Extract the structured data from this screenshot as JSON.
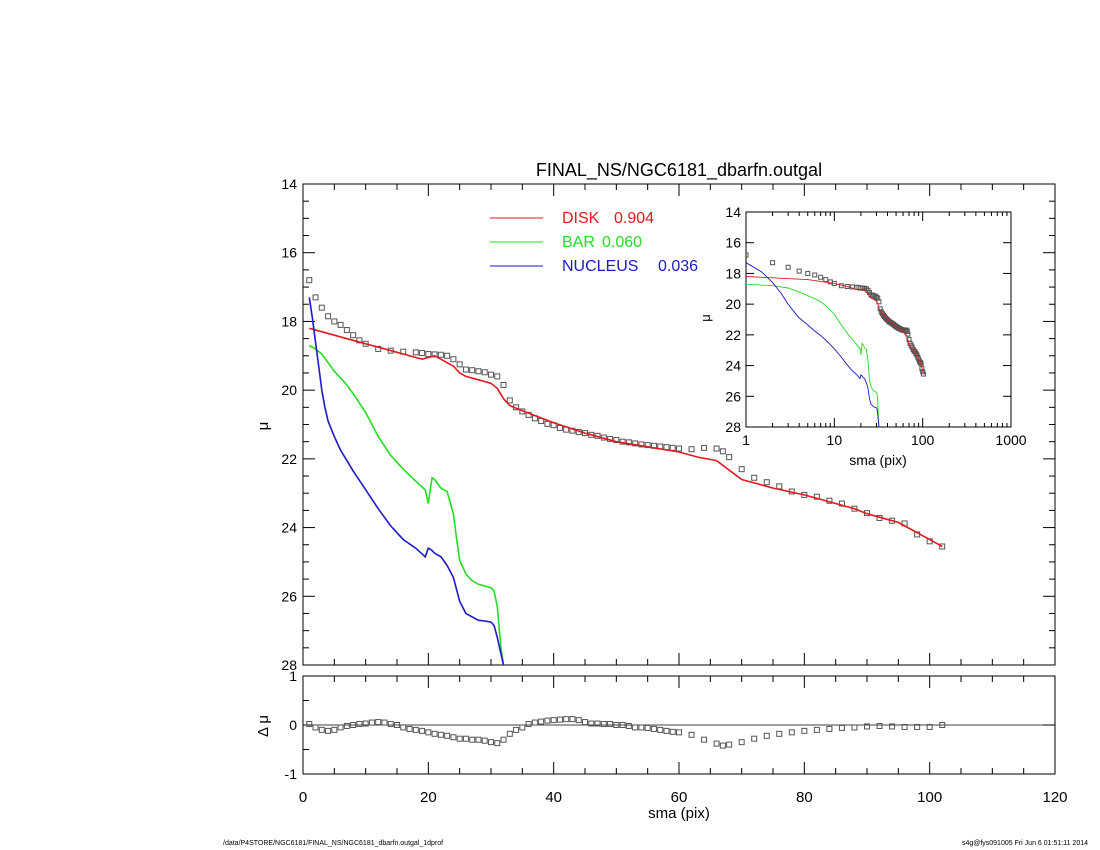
{
  "chart_data": [
    {
      "panel": "main profile",
      "type": "line",
      "title": "FINAL_NS/NGC6181_dbarfn.outgal",
      "xlabel": "",
      "ylabel": "μ",
      "xlim": [
        0,
        120
      ],
      "ylim": [
        28,
        14
      ],
      "y_inverted": true,
      "x_ticks": [
        "0",
        "20",
        "40",
        "60",
        "80",
        "100",
        "120"
      ],
      "y_ticks": [
        "14",
        "16",
        "18",
        "20",
        "22",
        "24",
        "26",
        "28"
      ],
      "legend_position": "top-center",
      "legend": [
        {
          "name": "DISK",
          "value": "0.904",
          "color": "#e31a1c"
        },
        {
          "name": "BAR",
          "value": "0.060",
          "color": "#22dd22"
        },
        {
          "name": "NUCLEUS",
          "value": "0.036",
          "color": "#1a1acc"
        }
      ],
      "observed": {
        "marker": "open-square",
        "color": "#555555",
        "x": [
          1,
          2,
          3,
          4,
          5,
          6,
          7,
          8,
          9,
          10,
          12,
          14,
          16,
          18,
          19,
          20,
          21,
          22,
          23,
          24,
          25,
          26,
          27,
          28,
          29,
          30,
          31,
          32,
          33,
          34,
          35,
          36,
          37,
          38,
          39,
          40,
          41,
          42,
          43,
          44,
          45,
          46,
          47,
          48,
          49,
          50,
          51,
          52,
          53,
          54,
          55,
          56,
          57,
          58,
          59,
          60,
          62,
          64,
          66,
          67,
          68,
          70,
          72,
          74,
          76,
          78,
          80,
          82,
          84,
          86,
          88,
          90,
          92,
          94,
          96,
          98,
          100,
          102
        ],
        "y": [
          16.8,
          17.3,
          17.6,
          17.85,
          18.0,
          18.1,
          18.25,
          18.4,
          18.55,
          18.65,
          18.8,
          18.85,
          18.88,
          18.9,
          18.92,
          18.95,
          18.96,
          18.97,
          19.0,
          19.1,
          19.25,
          19.4,
          19.42,
          19.45,
          19.48,
          19.55,
          19.6,
          19.85,
          20.3,
          20.5,
          20.62,
          20.72,
          20.82,
          20.9,
          20.98,
          21.02,
          21.1,
          21.15,
          21.18,
          21.22,
          21.25,
          21.3,
          21.33,
          21.38,
          21.42,
          21.45,
          21.5,
          21.52,
          21.55,
          21.58,
          21.6,
          21.62,
          21.64,
          21.66,
          21.68,
          21.7,
          21.72,
          21.68,
          21.7,
          21.78,
          21.95,
          22.3,
          22.55,
          22.68,
          22.8,
          22.95,
          23.05,
          23.1,
          23.22,
          23.3,
          23.45,
          23.58,
          23.72,
          23.8,
          23.88,
          24.2,
          24.4,
          24.55
        ]
      },
      "series": [
        {
          "name": "DISK",
          "color": "#e31a1c",
          "x": [
            1,
            5,
            10,
            15,
            18,
            19,
            20,
            21,
            22,
            23,
            24,
            25,
            26,
            28,
            30,
            31,
            32,
            33,
            35,
            40,
            45,
            50,
            55,
            60,
            63,
            66,
            70,
            75,
            80,
            85,
            88,
            90,
            95,
            100,
            102
          ],
          "y": [
            18.2,
            18.4,
            18.65,
            18.9,
            19.05,
            19.1,
            19.05,
            19.0,
            19.1,
            19.2,
            19.3,
            19.5,
            19.6,
            19.7,
            19.8,
            19.95,
            20.25,
            20.45,
            20.6,
            20.95,
            21.25,
            21.5,
            21.65,
            21.8,
            21.95,
            22.05,
            22.6,
            22.85,
            23.05,
            23.3,
            23.45,
            23.6,
            23.85,
            24.35,
            24.55
          ]
        },
        {
          "name": "BAR",
          "color": "#22dd22",
          "x": [
            1,
            2,
            3,
            4,
            5,
            6,
            7,
            8,
            10,
            12,
            14,
            16,
            18,
            19.5,
            20,
            20.3,
            20.6,
            21,
            22,
            23,
            24,
            24.5,
            25,
            26,
            27,
            28,
            29,
            30,
            30.5,
            31,
            31.3,
            31.6,
            32
          ],
          "y": [
            18.7,
            18.8,
            18.95,
            19.2,
            19.45,
            19.65,
            19.85,
            20.1,
            20.65,
            21.35,
            21.9,
            22.3,
            22.65,
            22.9,
            23.3,
            22.9,
            22.55,
            22.6,
            22.85,
            22.95,
            23.6,
            24.3,
            24.95,
            25.35,
            25.55,
            25.65,
            25.7,
            25.75,
            25.85,
            26.3,
            26.9,
            27.5,
            28
          ]
        },
        {
          "name": "NUCLEUS",
          "color": "#1a1acc",
          "x": [
            1,
            1.5,
            2,
            2.5,
            3,
            3.5,
            4,
            5,
            6,
            7,
            8,
            10,
            12,
            14,
            16,
            18,
            19.5,
            20,
            20.5,
            21,
            22,
            23,
            24,
            25,
            26,
            27,
            28,
            29,
            30,
            30.5,
            31,
            31.5,
            32
          ],
          "y": [
            17.3,
            17.9,
            18.6,
            19.3,
            20.0,
            20.5,
            20.9,
            21.35,
            21.75,
            22.05,
            22.35,
            22.9,
            23.45,
            23.95,
            24.35,
            24.6,
            24.85,
            24.6,
            24.65,
            24.75,
            24.85,
            25.1,
            25.45,
            26.15,
            26.5,
            26.6,
            26.7,
            26.72,
            26.75,
            26.85,
            27.2,
            27.6,
            28
          ]
        }
      ]
    },
    {
      "panel": "residuals",
      "type": "scatter",
      "xlabel": "sma (pix)",
      "ylabel": "Δ μ",
      "xlim": [
        0,
        120
      ],
      "ylim": [
        -1,
        1
      ],
      "x_ticks": [
        "0",
        "20",
        "40",
        "60",
        "80",
        "100",
        "120"
      ],
      "y_ticks": [
        "1",
        "0",
        "-1"
      ],
      "zero_line": true,
      "marker": "open-square",
      "x": [
        1,
        2,
        3,
        4,
        5,
        6,
        7,
        8,
        9,
        10,
        11,
        12,
        13,
        14,
        15,
        16,
        17,
        18,
        19,
        20,
        21,
        22,
        23,
        24,
        25,
        26,
        27,
        28,
        29,
        30,
        31,
        32,
        33,
        34,
        35,
        36,
        37,
        38,
        39,
        40,
        41,
        42,
        43,
        44,
        45,
        46,
        47,
        48,
        49,
        50,
        51,
        52,
        53,
        54,
        55,
        56,
        57,
        58,
        59,
        60,
        62,
        64,
        66,
        67,
        68,
        70,
        72,
        74,
        76,
        78,
        80,
        82,
        84,
        86,
        88,
        90,
        92,
        94,
        96,
        98,
        100,
        102
      ],
      "y": [
        0.02,
        -0.05,
        -0.1,
        -0.12,
        -0.1,
        -0.05,
        -0.02,
        0,
        0.02,
        0.03,
        0.05,
        0.06,
        0.05,
        0.02,
        0,
        -0.05,
        -0.08,
        -0.1,
        -0.12,
        -0.15,
        -0.18,
        -0.2,
        -0.22,
        -0.25,
        -0.28,
        -0.28,
        -0.3,
        -0.3,
        -0.32,
        -0.35,
        -0.37,
        -0.3,
        -0.18,
        -0.1,
        -0.05,
        0.02,
        0.05,
        0.07,
        0.09,
        0.1,
        0.11,
        0.12,
        0.12,
        0.1,
        0.06,
        0.03,
        0.03,
        0.02,
        0.02,
        0,
        0,
        -0.02,
        -0.05,
        -0.05,
        -0.06,
        -0.08,
        -0.1,
        -0.12,
        -0.14,
        -0.15,
        -0.2,
        -0.3,
        -0.38,
        -0.42,
        -0.4,
        -0.35,
        -0.28,
        -0.22,
        -0.18,
        -0.15,
        -0.12,
        -0.1,
        -0.08,
        -0.06,
        -0.05,
        -0.03,
        -0.02,
        -0.03,
        -0.04,
        -0.04,
        -0.04,
        0
      ]
    },
    {
      "panel": "inset log profile",
      "type": "line",
      "xlabel": "sma (pix)",
      "ylabel": "μ",
      "x_scale": "log",
      "xlim": [
        1,
        1000
      ],
      "ylim": [
        28,
        14
      ],
      "y_inverted": true,
      "x_ticks": [
        "1",
        "10",
        "100",
        "1000"
      ],
      "y_ticks": [
        "14",
        "16",
        "18",
        "20",
        "22",
        "24",
        "26",
        "28"
      ]
    }
  ],
  "footer": {
    "left": "/data/P4STORE/NGC6181/FINAL_NS/NGC6181_dbarfn.outgal_1dprof",
    "right": "s4g@fys091005  Fri Jun  6 01:51:11 2014"
  }
}
